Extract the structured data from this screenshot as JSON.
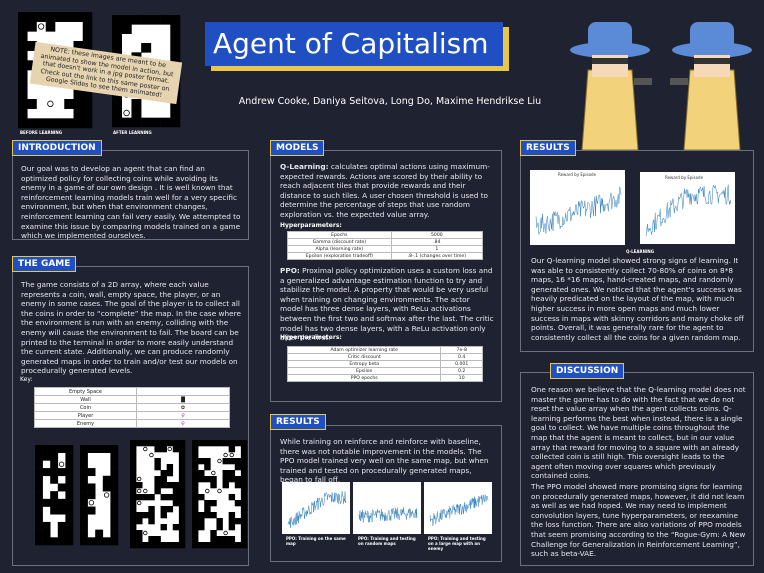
{
  "poster": {
    "title": "Agent of Capitalism",
    "authors": "Andrew Cooke, Daniya Seitova, Long Do, Maxime Hendrikse Liu",
    "note": "NOTE: these images are meant to be animated to show the model in action, but that doesn't work in a jpg poster format. Check out the link to this same poster on Google Slides to see them animated!",
    "before_label": "BEFORE LEARNING",
    "after_label": "AFTER LEARNING",
    "introduction": {
      "heading": "INTRODUCTION",
      "text": "Our goal was to develop an agent that can find an optimized policy for collecting coins while avoiding its enemy in a game of our own design . It is well known that reinforcement learning models train well for a very specific environment, but when that environment changes, reinforcement learning can fail very easily. We attempted to examine this issue by comparing models trained on a game which we implemented ourselves."
    },
    "game": {
      "heading": "THE GAME",
      "text": "The game consists of a 2D array, where each value represents a coin, wall, empty space, the player, or an enemy in some cases. The goal of the player is to collect all the coins in order to “complete” the map. In the case where the environment is run with an enemy, colliding with the enemy will cause the environment to fail. The board can be printed to the terminal in order to more easily understand the current state. Additionally, we can produce randomly generated maps in order to train and/or test our models on procedurally generated levels.",
      "key_label": "Key:",
      "key": [
        "Empty Space",
        "Wall",
        "Coin",
        "Player",
        "Enemy"
      ]
    },
    "models": {
      "heading": "MODELS",
      "q_name": "Q-Learning:",
      "q_text": "calculates optimal actions using maximum-expected rewards. Actions are scored by their ability to reach adjacent tiles that provide rewards and their distance to such tiles. A user chosen threshold is used to determine the percentage of steps that use random exploration vs. the expected value array.",
      "hyper_label": "Hyperparameters:",
      "q_table": [
        [
          "Epochs",
          "5000"
        ],
        [
          "Gamma (discount rate)",
          ".84"
        ],
        [
          "Alpha (learning rate)",
          "1"
        ],
        [
          "Epsilon (exploration tradeoff)",
          ".8-.1 (changes over time)"
        ]
      ],
      "ppo_name": "PPO:",
      "ppo_text": "Proximal policy optimization uses a custom loss and a generalized advantage estimation function to try and stabilize the model. A property that would be very useful when training on changing environments. The actor model has three dense layers, with ReLu activations between the first two and softmax after the last. The critic model has two dense layers, with a ReLu activation only after the first.",
      "ppo_table": [
        [
          "Adam optimizer learning rate",
          "7e-8"
        ],
        [
          "Critic discount",
          "0.4"
        ],
        [
          "Entropy beta",
          "0.001"
        ],
        [
          "Epsilon",
          "0.2"
        ],
        [
          "PPO epochs",
          "10"
        ]
      ]
    },
    "results_mid": {
      "heading": "RESULTS",
      "text": "While training on reinforce and reinforce with baseline, there was not notable improvement in the models. The PPO model trained very well on the same map, but when trained and tested on procedurally generated maps, began to fall off.",
      "captions": [
        "PPO: Training on the same map",
        "PPO: Training and testing on random maps",
        "PPO: Training and testing on a large map with an enemy"
      ]
    },
    "results_right": {
      "heading": "RESULTS",
      "chart_titles": [
        "Reward by Episode",
        "Reward by Episode"
      ],
      "caption": "Q-LEARNING",
      "text": "Our Q-learning model showed strong signs of learning. It was able to consistently collect 70-80% of coins on 8*8 maps, 16 *16 maps, hand-created maps, and randomly generated ones. We noticed that the agent's success was heavily predicated on the layout of the map, with much higher success in more open maps and much lower success in maps with skinny corridors and many choke off points. Overall, it was generally rare for the agent to consistently collect all the coins for a given random map."
    },
    "discussion": {
      "heading": "DISCUSSION",
      "text": "One reason we believe that the Q-learning model does not master the game has to do with the fact that we do not reset the value array when the agent collects coins. Q-learning performs the best when instead, there is a single goal to collect. We have multiple coins throughout the map that the agent is meant to collect, but in our value array that reward for moving to a square with an already collected coin is still high. This oversight leads to the agent often moving over squares which previously contained coins.",
      "text2": "The PPO model showed more promising signs for learning on procedurally generated maps, however, it did not learn as well as we had hoped. We may need to implement convolution layers, tune hyperparameters, or reexamine the loss function. There are also variations of PPO models that seem promising according to the “Rogue-Gym: A New Challenge for Generalization in Reinforcement Learning”, such as beta-VAE."
    }
  }
}
